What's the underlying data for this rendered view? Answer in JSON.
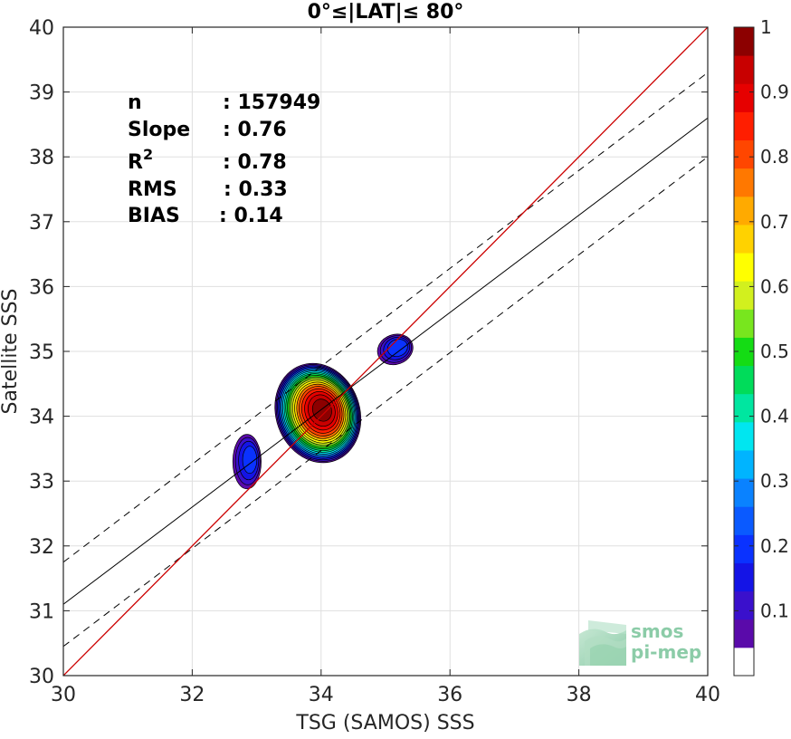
{
  "chart_data": {
    "type": "contour-scatter",
    "title": "0°≤|LAT|≤ 80°",
    "xlabel": "TSG (SAMOS) SSS",
    "ylabel": "Satellite SSS",
    "xlim": [
      30,
      40
    ],
    "ylim": [
      30,
      40
    ],
    "xticks": [
      30,
      32,
      34,
      36,
      38,
      40
    ],
    "yticks": [
      30,
      31,
      32,
      33,
      34,
      35,
      36,
      37,
      38,
      39,
      40
    ],
    "grid": true,
    "stats": [
      {
        "key": "n",
        "value": ": 157949"
      },
      {
        "key": "Slope",
        "value": ": 0.76"
      },
      {
        "key": "R",
        "sup": "2",
        "value": ": 0.78"
      },
      {
        "key": "RMS",
        "value": ": 0.33"
      },
      {
        "key": "BIAS",
        "value": ": 0.14"
      }
    ],
    "lines": {
      "identity": {
        "x": [
          30,
          40
        ],
        "y": [
          30,
          40
        ],
        "color": "#cc0000"
      },
      "fit": {
        "x": [
          30,
          40
        ],
        "y": [
          31.1,
          38.6
        ],
        "color": "#000000"
      },
      "fit_upper": {
        "x": [
          30,
          40
        ],
        "y": [
          31.75,
          39.3
        ],
        "color": "#000000",
        "dash": true
      },
      "fit_lower": {
        "x": [
          30,
          40
        ],
        "y": [
          30.45,
          38.0
        ],
        "color": "#000000",
        "dash": true
      }
    },
    "density_blobs": [
      {
        "cx": 33.95,
        "cy": 34.05,
        "rx": 0.65,
        "ry": 0.78,
        "rot": -20,
        "peak": 1.0
      },
      {
        "cx": 32.85,
        "cy": 33.3,
        "rx": 0.22,
        "ry": 0.42,
        "rot": 0,
        "peak": 0.2
      },
      {
        "cx": 35.15,
        "cy": 35.03,
        "rx": 0.28,
        "ry": 0.23,
        "rot": -20,
        "peak": 0.22
      }
    ],
    "colorbar": {
      "range": [
        0,
        1
      ],
      "ticks": [
        0.1,
        0.2,
        0.3,
        0.4,
        0.5,
        0.6,
        0.7,
        0.8,
        0.9,
        1
      ],
      "tick_labels": [
        "0.1",
        "0.2",
        "0.3",
        "0.4",
        "0.5",
        "0.6",
        "0.7",
        "0.8",
        "0.9",
        "1"
      ],
      "colors": [
        "#ffffff",
        "#5a0aaa",
        "#3a10cc",
        "#1414e6",
        "#0a32ff",
        "#0a5aff",
        "#0a82ff",
        "#00b4ff",
        "#00e6f0",
        "#00e6a0",
        "#00dc5a",
        "#14dc14",
        "#78e61e",
        "#d2f01e",
        "#ffff00",
        "#ffd200",
        "#ffaa00",
        "#ff7800",
        "#ff4600",
        "#ff1e00",
        "#e60000",
        "#c80000",
        "#8c0000"
      ]
    }
  },
  "logo": {
    "line1": "smos",
    "line2": "pi-mep"
  }
}
